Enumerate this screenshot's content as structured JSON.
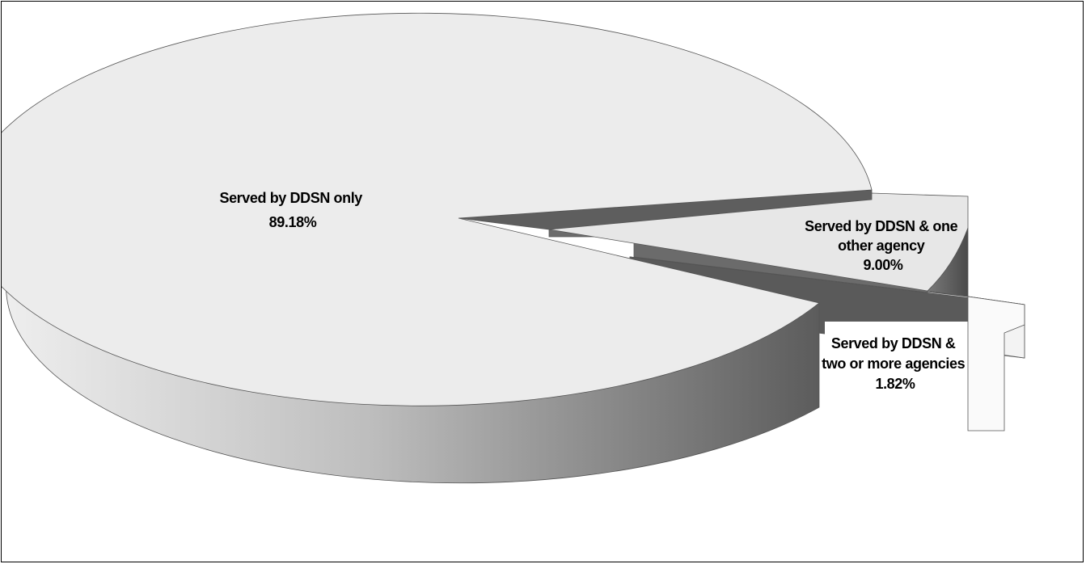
{
  "chart_data": {
    "type": "pie",
    "three_d": true,
    "exploded": true,
    "title": "",
    "slices": [
      {
        "label": "Served by DDSN only",
        "value": 89.18,
        "value_label": "89.18%",
        "color": "#ececec"
      },
      {
        "label": "Served by DDSN & one other agency",
        "value": 9.0,
        "value_label": "9.00%",
        "color": "#e6e6e6"
      },
      {
        "label": "Served by DDSN & two or more agencies",
        "value": 1.82,
        "value_label": "1.82%",
        "color": "#fafafa"
      }
    ],
    "legend": "none"
  }
}
